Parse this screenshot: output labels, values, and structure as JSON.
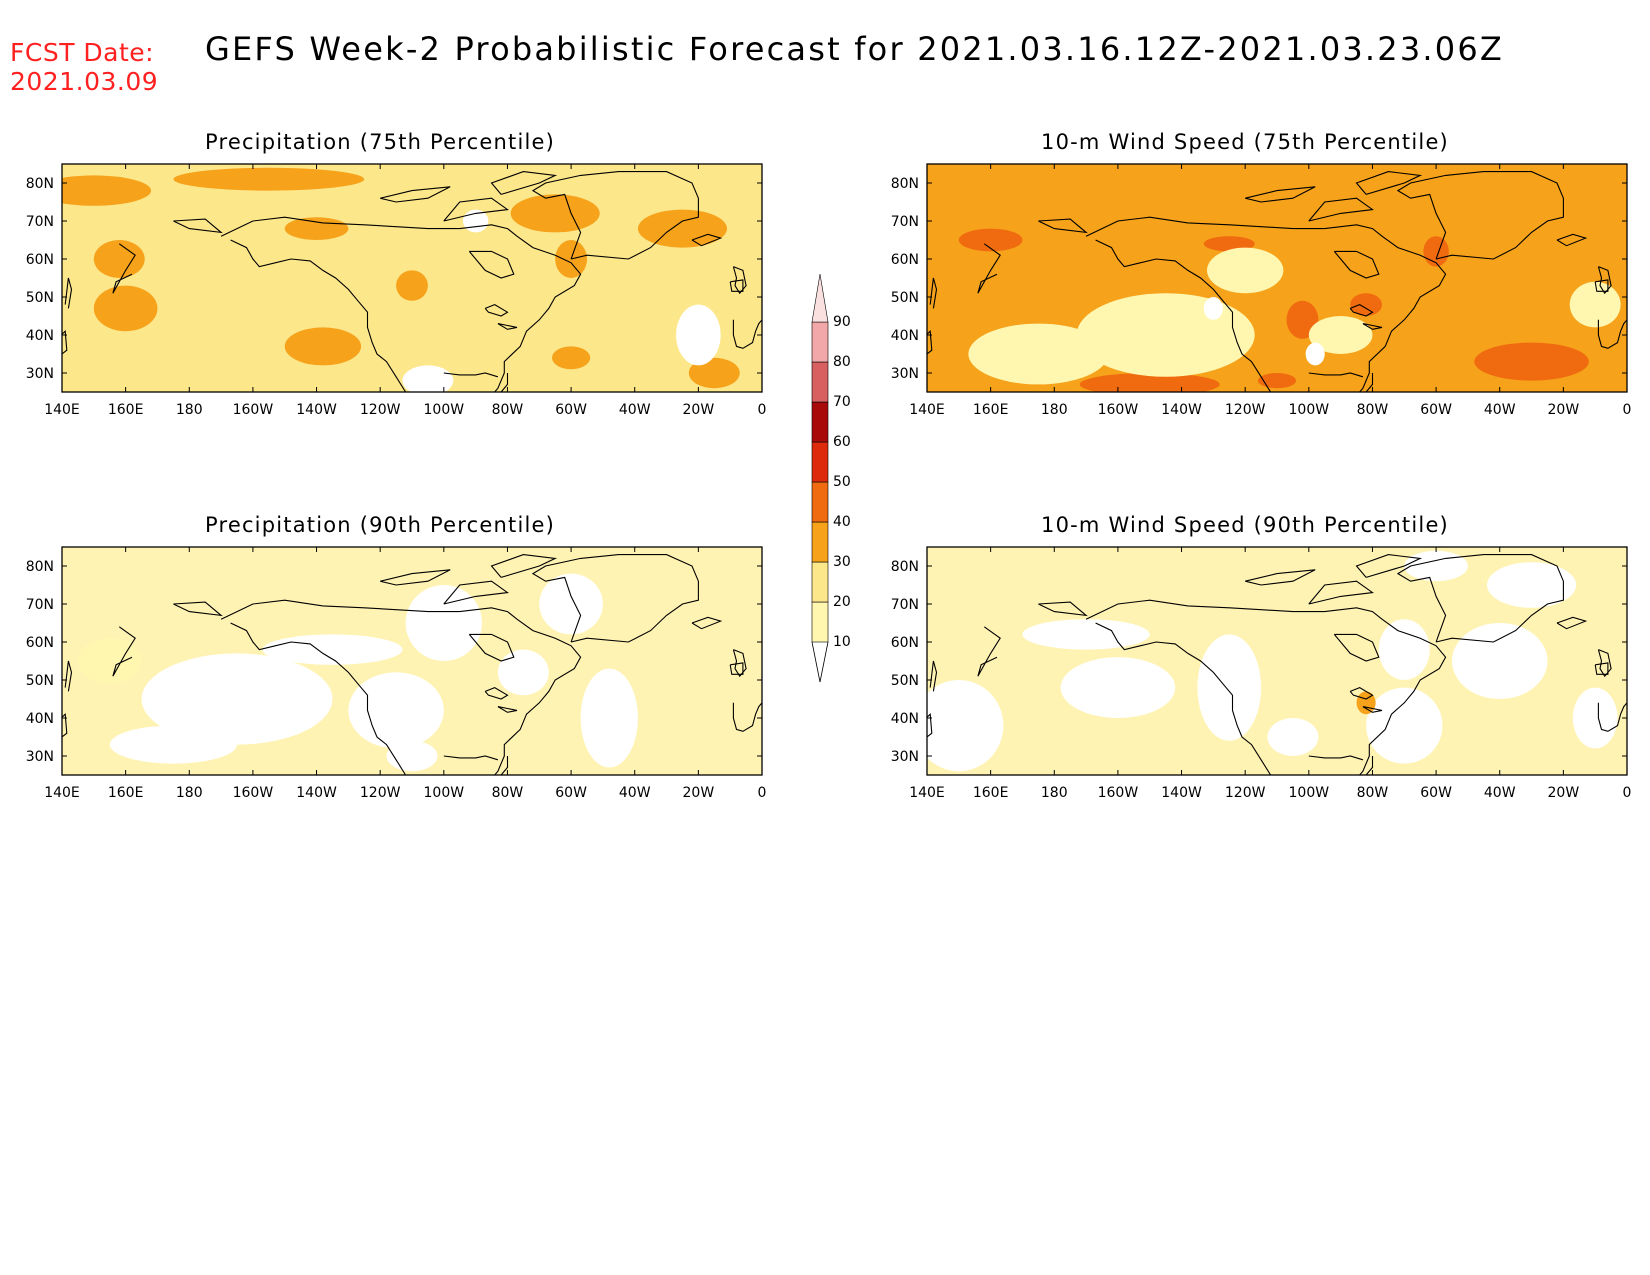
{
  "forecast_date": {
    "label": "FCST Date:",
    "value": "2021.03.09"
  },
  "title": "GEFS Week-2 Probabilistic Forecast for 2021.03.16.12Z-2021.03.23.06Z",
  "legend": {
    "levels": [
      "10",
      "20",
      "30",
      "40",
      "50",
      "60",
      "70",
      "80",
      "90"
    ],
    "colors": [
      "#fff7b0",
      "#fde78b",
      "#f6a21a",
      "#f06a10",
      "#dc2a0a",
      "#a80a0a",
      "#d96060",
      "#f2a8a8",
      "#fbe0e0"
    ]
  },
  "background_colors": {
    "white": "#ffffff"
  },
  "panels": [
    {
      "id": "precip75",
      "title": "Precipitation (75th Percentile)",
      "dominant_level_color": "#fde78b",
      "high_level_color": "#f6a21a"
    },
    {
      "id": "wind75",
      "title": "10-m Wind Speed (75th Percentile)",
      "dominant_level_color": "#f6a21a",
      "high_level_color": "#f06a10"
    },
    {
      "id": "precip90",
      "title": "Precipitation (90th Percentile)",
      "dominant_level_color": "#fff3b4",
      "high_level_color": "#fde78b"
    },
    {
      "id": "wind90",
      "title": "10-m Wind Speed (90th Percentile)",
      "dominant_level_color": "#fff3b4",
      "high_level_color": "#fde78b"
    }
  ],
  "axes": {
    "lon_ticks": [
      "140E",
      "160E",
      "180",
      "160W",
      "140W",
      "120W",
      "100W",
      "80W",
      "60W",
      "40W",
      "20W",
      "0"
    ],
    "lat_ticks": [
      "80N",
      "70N",
      "60N",
      "50N",
      "40N",
      "30N"
    ]
  }
}
